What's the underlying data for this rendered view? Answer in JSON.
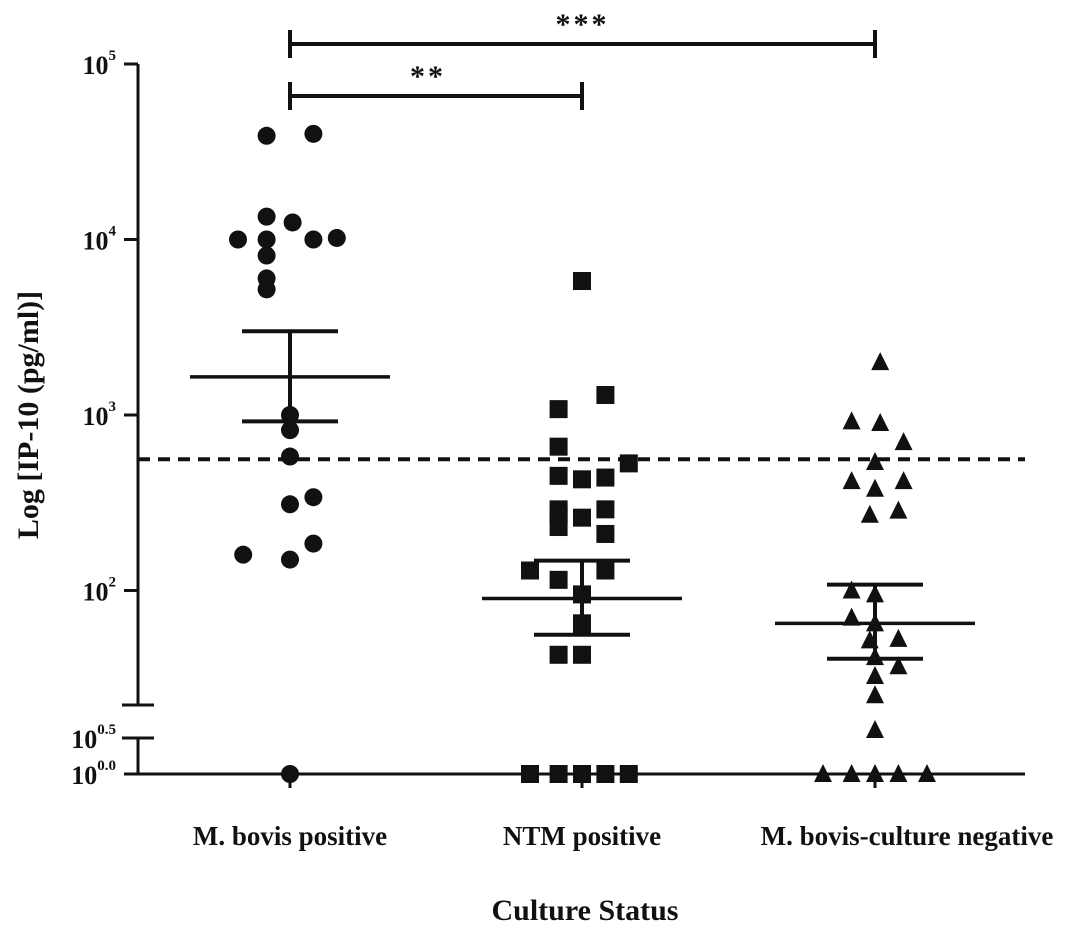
{
  "chart_data": {
    "type": "scatter",
    "title": "",
    "xlabel": "Culture Status",
    "ylabel": "Log [IP-10 (pg/ml)]",
    "y_scale": "log10",
    "y_axis_break": true,
    "y_ticks_upper": [
      {
        "base": "10",
        "exp": "2",
        "value": 100
      },
      {
        "base": "10",
        "exp": "3",
        "value": 1000
      },
      {
        "base": "10",
        "exp": "4",
        "value": 10000
      },
      {
        "base": "10",
        "exp": "5",
        "value": 100000
      }
    ],
    "y_ticks_lower": [
      {
        "base": "10",
        "exp": "0.0",
        "value": 1
      },
      {
        "base": "10",
        "exp": "0.5",
        "value": 3.16
      }
    ],
    "threshold_line": {
      "value": 560,
      "style": "dashed"
    },
    "categories": [
      "M. bovis positive",
      "NTM positive",
      "M. bovis-culture negative"
    ],
    "series": [
      {
        "category": "M. bovis positive",
        "marker": "circle",
        "mean": 1650,
        "error_upper": 3000,
        "error_lower": 920,
        "points": [
          [
            -0.09,
            39000
          ],
          [
            0.09,
            40000
          ],
          [
            -0.09,
            13500
          ],
          [
            0.01,
            12500
          ],
          [
            -0.2,
            10000
          ],
          [
            -0.09,
            10000
          ],
          [
            0.09,
            10000
          ],
          [
            0.18,
            10200
          ],
          [
            -0.09,
            8100
          ],
          [
            -0.09,
            6000
          ],
          [
            -0.09,
            5200
          ],
          [
            0.0,
            1000
          ],
          [
            0.0,
            820
          ],
          [
            0.0,
            580
          ],
          [
            0.09,
            340
          ],
          [
            0.0,
            310
          ],
          [
            0.09,
            185
          ],
          [
            -0.18,
            160
          ],
          [
            0.0,
            150
          ],
          [
            0.0,
            1
          ]
        ]
      },
      {
        "category": "NTM positive",
        "marker": "square",
        "mean": 90,
        "error_upper": 148,
        "error_lower": 56,
        "points": [
          [
            0.0,
            5800
          ],
          [
            0.09,
            1300
          ],
          [
            -0.09,
            1080
          ],
          [
            -0.09,
            660
          ],
          [
            0.18,
            530
          ],
          [
            -0.09,
            450
          ],
          [
            0.0,
            430
          ],
          [
            0.09,
            440
          ],
          [
            -0.09,
            290
          ],
          [
            0.09,
            290
          ],
          [
            -0.09,
            270
          ],
          [
            0.0,
            260
          ],
          [
            -0.09,
            230
          ],
          [
            0.09,
            210
          ],
          [
            -0.2,
            130
          ],
          [
            0.09,
            130
          ],
          [
            -0.09,
            115
          ],
          [
            0.0,
            95
          ],
          [
            0.0,
            65
          ],
          [
            0.0,
            62
          ],
          [
            -0.09,
            43
          ],
          [
            0.0,
            43
          ],
          [
            -0.2,
            1
          ],
          [
            -0.09,
            1
          ],
          [
            0.0,
            1
          ],
          [
            0.09,
            1
          ],
          [
            0.18,
            1
          ]
        ]
      },
      {
        "category": "M. bovis-culture negative",
        "marker": "triangle",
        "mean": 65,
        "error_upper": 108,
        "error_lower": 38,
        "points": [
          [
            0.02,
            2000
          ],
          [
            -0.09,
            920
          ],
          [
            0.02,
            900
          ],
          [
            0.11,
            700
          ],
          [
            0.0,
            540
          ],
          [
            -0.09,
            420
          ],
          [
            0.11,
            420
          ],
          [
            0.0,
            380
          ],
          [
            -0.02,
            270
          ],
          [
            0.09,
            285
          ],
          [
            -0.09,
            100
          ],
          [
            0.0,
            95
          ],
          [
            -0.09,
            70
          ],
          [
            0.0,
            65
          ],
          [
            0.09,
            53
          ],
          [
            -0.02,
            52
          ],
          [
            0.0,
            40
          ],
          [
            0.09,
            30
          ],
          [
            0.0,
            22
          ],
          [
            0.0,
            12
          ],
          [
            0.0,
            4
          ],
          [
            -0.2,
            1
          ],
          [
            -0.09,
            1
          ],
          [
            0.0,
            1
          ],
          [
            0.09,
            1
          ],
          [
            0.2,
            1
          ]
        ]
      }
    ],
    "significance": [
      {
        "from": 0,
        "to": 1,
        "label": "**"
      },
      {
        "from": 0,
        "to": 2,
        "label": "***"
      }
    ],
    "grid": false,
    "legend": "none"
  }
}
